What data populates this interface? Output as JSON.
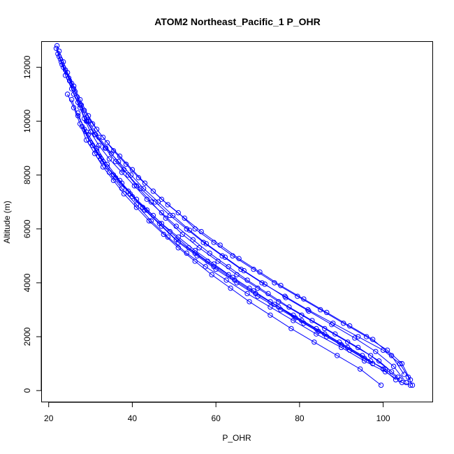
{
  "chart_data": {
    "type": "line",
    "title": "ATOM2 Northeast_Pacific_1 P_OHR",
    "xlabel": "P_OHR",
    "ylabel": "Altitude (m)",
    "xlim": [
      20,
      110
    ],
    "ylim": [
      0,
      13000
    ],
    "xticks": [
      20,
      40,
      60,
      80,
      100
    ],
    "yticks": [
      0,
      2000,
      4000,
      6000,
      8000,
      10000,
      12000
    ],
    "grid": false,
    "legend": "none",
    "markers": "open-circle",
    "color": "#0000ff",
    "series": [
      {
        "x": [
          22.0,
          22.5,
          23.5,
          25.0,
          26.0,
          27.5,
          29.0,
          31.0,
          33.5,
          36.0,
          39.0,
          42.0,
          45.5,
          49.0,
          53.0,
          57.0,
          61.5,
          66.0,
          71.0,
          76.5,
          82.0,
          88.0,
          94.0,
          100.0,
          104.0,
          106.0,
          107.0
        ],
        "y": [
          12800,
          12400,
          12000,
          11500,
          11000,
          10500,
          10000,
          9500,
          9000,
          8500,
          8000,
          7500,
          7000,
          6500,
          6000,
          5500,
          5000,
          4500,
          4000,
          3500,
          3000,
          2500,
          2000,
          1500,
          1000,
          500,
          200
        ]
      },
      {
        "x": [
          22.5,
          23.5,
          24.5,
          26.0,
          27.5,
          29.5,
          31.5,
          34.0,
          37.0,
          40.0,
          43.0,
          47.0,
          51.0,
          55.0,
          59.5,
          64.0,
          69.0,
          74.0,
          79.5,
          85.0,
          90.5,
          96.0,
          101.0,
          104.5,
          106.5
        ],
        "y": [
          12600,
          12200,
          11800,
          11300,
          10800,
          10200,
          9700,
          9200,
          8700,
          8200,
          7700,
          7100,
          6600,
          6000,
          5500,
          5000,
          4500,
          4000,
          3500,
          3000,
          2500,
          2000,
          1500,
          1000,
          400
        ]
      },
      {
        "x": [
          21.8,
          22.8,
          24.0,
          25.5,
          26.8,
          28.5,
          30.5,
          33.0,
          35.5,
          38.5,
          41.5,
          45.0,
          48.5,
          52.5,
          56.5,
          61.0,
          65.5,
          70.5,
          75.5,
          81.0,
          86.5,
          92.0,
          97.5,
          102.0,
          105.0
        ],
        "y": [
          12700,
          12300,
          11900,
          11400,
          10900,
          10400,
          9900,
          9400,
          8900,
          8400,
          7900,
          7400,
          6900,
          6400,
          5900,
          5400,
          4900,
          4400,
          3900,
          3400,
          2900,
          2400,
          1900,
          1300,
          600
        ]
      },
      {
        "x": [
          23.0,
          24.0,
          25.5,
          27.0,
          28.5,
          30.0,
          32.0,
          34.5,
          37.5,
          40.5,
          43.5,
          47.0,
          50.5,
          54.5,
          58.5,
          63.0,
          67.5,
          72.5,
          77.5,
          83.0,
          88.5,
          94.0,
          99.0,
          103.5
        ],
        "y": [
          12200,
          11700,
          11200,
          10700,
          10100,
          9600,
          9100,
          8600,
          8100,
          7600,
          7100,
          6600,
          6100,
          5600,
          5100,
          4600,
          4100,
          3600,
          3100,
          2600,
          2100,
          1600,
          1100,
          500
        ]
      },
      {
        "x": [
          22.2,
          23.2,
          24.8,
          26.3,
          27.8,
          29.2,
          31.2,
          33.7,
          36.7,
          39.7,
          42.7,
          46.2,
          49.7,
          53.7,
          57.7,
          62.2,
          66.7,
          71.7,
          76.7,
          82.2,
          87.7,
          93.2,
          98.2,
          102.5,
          105.5
        ],
        "y": [
          12500,
          12100,
          11600,
          11100,
          10600,
          10000,
          9500,
          9000,
          8500,
          8000,
          7500,
          7000,
          6500,
          5950,
          5450,
          4950,
          4450,
          3950,
          3450,
          2950,
          2450,
          1950,
          1450,
          900,
          300
        ]
      },
      {
        "x": [
          26.0,
          27.5,
          29.5,
          32.0,
          35.0,
          38.0,
          41.0,
          44.5,
          48.0,
          52.0,
          56.0,
          60.5,
          65.0,
          70.0,
          75.0,
          80.5,
          86.0,
          91.5,
          97.0,
          102.0
        ],
        "y": [
          11200,
          10600,
          10000,
          9400,
          8800,
          8200,
          7600,
          7000,
          6400,
          5800,
          5300,
          4800,
          4300,
          3800,
          3300,
          2800,
          2300,
          1800,
          1300,
          700
        ]
      },
      {
        "x": [
          24.5,
          26.0,
          27.5,
          29.0,
          31.0,
          33.0,
          35.5,
          38.0,
          41.0,
          44.0,
          47.5,
          51.0,
          55.0,
          59.0,
          63.5,
          68.0,
          73.0,
          78.0,
          83.5,
          89.0,
          94.5,
          99.5
        ],
        "y": [
          11000,
          10500,
          9900,
          9300,
          8800,
          8300,
          7800,
          7300,
          6800,
          6300,
          5800,
          5300,
          4800,
          4300,
          3800,
          3300,
          2800,
          2300,
          1800,
          1300,
          800,
          200
        ]
      },
      {
        "x": [
          27.0,
          28.5,
          30.5,
          33.0,
          36.0,
          39.5,
          43.0,
          47.0,
          51.0,
          55.5,
          60.0,
          65.0,
          70.0,
          75.5,
          81.0,
          86.5,
          92.0,
          97.5
        ],
        "y": [
          10300,
          9700,
          9100,
          8500,
          7900,
          7300,
          6700,
          6100,
          5500,
          5000,
          4500,
          4000,
          3500,
          3000,
          2500,
          2000,
          1500,
          1000
        ]
      },
      {
        "x": [
          25.5,
          27.0,
          29.0,
          31.5,
          34.0,
          37.0,
          40.0,
          43.5,
          47.0,
          51.0,
          55.0,
          59.5,
          64.0,
          69.0,
          74.0,
          79.0,
          84.5,
          90.0,
          95.5,
          100.5,
          104.0
        ],
        "y": [
          10800,
          10200,
          9600,
          9000,
          8400,
          7800,
          7200,
          6700,
          6200,
          5700,
          5200,
          4700,
          4200,
          3700,
          3200,
          2700,
          2200,
          1700,
          1200,
          800,
          400
        ]
      },
      {
        "x": [
          28.0,
          30.0,
          32.5,
          35.5,
          39.0,
          42.5,
          46.5,
          50.5,
          55.0,
          59.5,
          64.5,
          69.5,
          75.0,
          80.5,
          86.0,
          91.5,
          97.0
        ],
        "y": [
          9800,
          9200,
          8600,
          8000,
          7400,
          6800,
          6200,
          5600,
          5100,
          4600,
          4100,
          3600,
          3100,
          2600,
          2100,
          1600,
          1100
        ]
      },
      {
        "x": [
          29.5,
          31.5,
          34.0,
          37.5,
          41.0,
          45.0,
          49.0,
          53.5,
          58.0,
          63.0,
          68.0,
          73.0,
          78.5,
          84.0,
          89.5,
          95.0,
          100.0,
          103.0
        ],
        "y": [
          9500,
          8900,
          8300,
          7700,
          7100,
          6500,
          5900,
          5300,
          4800,
          4300,
          3800,
          3300,
          2800,
          2300,
          1800,
          1300,
          800,
          400
        ]
      },
      {
        "x": [
          30.0,
          32.0,
          34.5,
          37.5,
          41.0,
          44.5,
          48.5,
          53.0,
          57.5,
          62.5,
          67.5,
          73.0,
          78.5,
          84.0,
          90.0,
          95.5,
          100.5,
          104.5,
          106.5
        ],
        "y": [
          9200,
          8700,
          8100,
          7500,
          6900,
          6300,
          5700,
          5100,
          4600,
          4100,
          3600,
          3100,
          2600,
          2100,
          1600,
          1100,
          700,
          300,
          200
        ]
      }
    ]
  }
}
